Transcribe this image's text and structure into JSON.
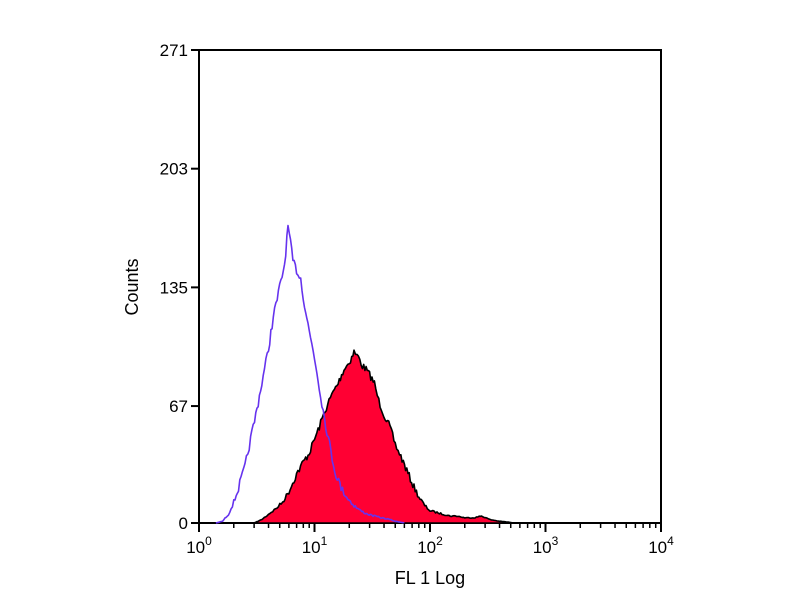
{
  "chart_data": {
    "type": "area",
    "title": "",
    "xlabel": "FL 1 Log",
    "ylabel": "Counts",
    "x_scale": "log",
    "xlim": [
      1,
      10000
    ],
    "ylim": [
      0,
      271
    ],
    "x_ticks": [
      {
        "base": "10",
        "exp": "0",
        "value": 1
      },
      {
        "base": "10",
        "exp": "1",
        "value": 10
      },
      {
        "base": "10",
        "exp": "2",
        "value": 100
      },
      {
        "base": "10",
        "exp": "3",
        "value": 1000
      },
      {
        "base": "10",
        "exp": "4",
        "value": 10000
      }
    ],
    "y_ticks": [
      {
        "label": "0",
        "value": 0
      },
      {
        "label": "67",
        "value": 67
      },
      {
        "label": "135",
        "value": 135
      },
      {
        "label": "203",
        "value": 203
      },
      {
        "label": "271",
        "value": 271
      }
    ],
    "grid": false,
    "legend": "none",
    "series": [
      {
        "style": "line",
        "color": "#6633ee",
        "x": [
          1.4,
          1.6,
          1.8,
          2.0,
          2.2,
          2.5,
          2.8,
          3.1,
          3.5,
          4.0,
          4.4,
          5.0,
          5.5,
          5.9,
          6.2,
          6.5,
          7.0,
          7.6,
          8.2,
          9.0,
          10.0,
          11.0,
          12.2,
          13.5,
          15.0,
          17.0,
          19.5,
          22.0,
          25.0,
          29.0,
          33.0,
          38.0,
          45.0,
          50.0,
          55.0,
          60.0
        ],
        "y": [
          0,
          1,
          5,
          12,
          20,
          32,
          48,
          62,
          80,
          100,
          118,
          135,
          148,
          170,
          160,
          150,
          145,
          140,
          125,
          110,
          95,
          78,
          60,
          45,
          30,
          20,
          14,
          10,
          7,
          5,
          4,
          3,
          2,
          1,
          0.5,
          0
        ]
      },
      {
        "style": "filled",
        "color": "#ff0033",
        "x": [
          3.0,
          3.5,
          4.0,
          4.6,
          5.3,
          6.0,
          7.0,
          8.0,
          9.0,
          10.0,
          11.0,
          12.0,
          13.0,
          14.5,
          16.0,
          18.0,
          20.0,
          22.0,
          24.0,
          26.0,
          28.0,
          30.0,
          33.0,
          36.0,
          40.0,
          45.0,
          50.0,
          56.0,
          63.0,
          71.0,
          80.0,
          90.0,
          100.0,
          115.0,
          130.0,
          150.0,
          170.0,
          200.0,
          240.0,
          280.0,
          330.0,
          400.0,
          480.0,
          520.0
        ],
        "y": [
          0,
          2,
          5,
          8,
          12,
          18,
          28,
          35,
          40,
          48,
          55,
          62,
          68,
          75,
          80,
          88,
          92,
          98,
          95,
          90,
          88,
          85,
          80,
          70,
          62,
          55,
          45,
          38,
          30,
          22,
          15,
          10,
          7,
          6,
          5,
          4,
          4,
          3,
          3,
          4,
          2,
          1,
          0.5,
          0
        ]
      }
    ]
  }
}
